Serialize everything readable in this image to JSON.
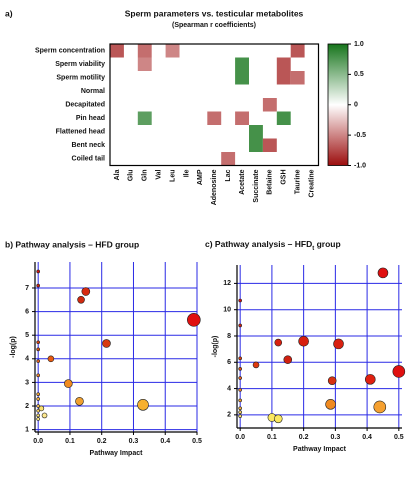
{
  "chart_data": [
    {
      "type": "heatmap",
      "panel": "a)",
      "title": "Sperm parameters vs. testicular metabolites",
      "subtitle": "(Spearman r coefficients)",
      "rows": [
        "Sperm concentration",
        "Sperm viability",
        "Sperm motility",
        "Normal",
        "Decapitated",
        "Pin head",
        "Flattened head",
        "Bent neck",
        "Coiled tail"
      ],
      "columns": [
        "Ala",
        "Glu",
        "Gln",
        "Val",
        "Leu",
        "Ile",
        "AMP",
        "Adenosine",
        "Lac",
        "Acetate",
        "Succinate",
        "Betaine",
        "GSH",
        "Taurine",
        "Creatine"
      ],
      "values": [
        [
          -0.7,
          null,
          -0.6,
          null,
          -0.5,
          null,
          null,
          null,
          null,
          null,
          null,
          null,
          null,
          -0.7,
          null
        ],
        [
          null,
          null,
          -0.5,
          null,
          null,
          null,
          null,
          null,
          null,
          0.8,
          null,
          null,
          -0.7,
          null,
          null
        ],
        [
          null,
          null,
          null,
          null,
          null,
          null,
          null,
          null,
          null,
          0.8,
          null,
          null,
          -0.7,
          -0.6,
          null
        ],
        [
          null,
          null,
          null,
          null,
          null,
          null,
          null,
          null,
          null,
          null,
          null,
          null,
          null,
          null,
          null
        ],
        [
          null,
          null,
          null,
          null,
          null,
          null,
          null,
          null,
          null,
          null,
          null,
          -0.6,
          null,
          null,
          null
        ],
        [
          null,
          null,
          0.7,
          null,
          null,
          null,
          null,
          -0.6,
          null,
          -0.6,
          null,
          null,
          0.8,
          null,
          null
        ],
        [
          null,
          null,
          null,
          null,
          null,
          null,
          null,
          null,
          null,
          null,
          0.8,
          null,
          null,
          null,
          null
        ],
        [
          null,
          null,
          null,
          null,
          null,
          null,
          null,
          null,
          null,
          null,
          0.8,
          -0.7,
          null,
          null,
          null
        ],
        [
          null,
          null,
          null,
          null,
          null,
          null,
          null,
          null,
          -0.6,
          null,
          null,
          null,
          null,
          null,
          null
        ]
      ],
      "clim": [
        -1,
        1
      ],
      "colors": [
        "#9c0d0d",
        "#ffffff",
        "#17751c"
      ],
      "cticks": [
        {
          "value": 1,
          "label": "1.0"
        },
        0.5,
        0,
        -0.5,
        {
          "value": -1,
          "label": "-1.0"
        }
      ]
    },
    {
      "type": "scatter",
      "title": "b) Pathway analysis – HFD group",
      "xlabel": "Pathway Impact",
      "ylabel": "-log(p)",
      "x": [
        0.49,
        0.15,
        0.135,
        0.215,
        0.04,
        0.095,
        0.13,
        0.33,
        0.0,
        0.0,
        0.0,
        0.0,
        0.0,
        0.0,
        0.0,
        0.0,
        0.0,
        0.0,
        0.0,
        0.0,
        0.01,
        0.02
      ],
      "y": [
        5.65,
        6.85,
        6.5,
        4.65,
        4.0,
        2.95,
        2.2,
        2.05,
        7.7,
        7.1,
        4.7,
        4.4,
        3.9,
        3.3,
        2.5,
        2.3,
        2.0,
        1.8,
        1.6,
        1.45,
        1.9,
        1.6
      ],
      "sizes": [
        6.5,
        4,
        3.5,
        4,
        3,
        4,
        4,
        5.5,
        1.5,
        1.5,
        1.5,
        1.5,
        1.5,
        1.5,
        1.5,
        1.5,
        1.5,
        1.5,
        1.5,
        1.5,
        2.5,
        2.5
      ],
      "colors": [
        "#e01010",
        "#d82a10",
        "#d02a10",
        "#d83a10",
        "#e85a10",
        "#f08a20",
        "#f0a030",
        "#f7b030",
        "#d81010",
        "#d82010",
        "#e04010",
        "#e05010",
        "#e86020",
        "#f08030",
        "#f3a030",
        "#f5b040",
        "#f7c050",
        "#f8d060",
        "#fbe070",
        "#fce880",
        "#fbe070",
        "#fde890"
      ],
      "xlim": [
        -0.01,
        0.5
      ],
      "ylim": [
        0.9,
        8.1
      ],
      "xticks": [
        {
          "value": 0,
          "label": "0.0"
        },
        0.1,
        0.2,
        0.3,
        0.4,
        0.5
      ],
      "yticks": [
        1,
        2,
        3,
        4,
        5,
        6,
        7
      ],
      "grid": true,
      "grid_color": "#2a2ae6"
    },
    {
      "type": "scatter",
      "title": "c) Pathway analysis – HFD",
      "title_sub": "t",
      "title_end": " group",
      "xlabel": "Pathway Impact",
      "ylabel": "-log(p)",
      "x": [
        0.45,
        0.5,
        0.41,
        0.31,
        0.29,
        0.2,
        0.15,
        0.12,
        0.05,
        0.285,
        0.44,
        0.1,
        0.12,
        0.0,
        0.0,
        0.0,
        0.0,
        0.0,
        0.0,
        0.0,
        0.0,
        0.0,
        0.0
      ],
      "y": [
        12.8,
        5.3,
        4.7,
        7.4,
        4.6,
        7.6,
        6.2,
        7.5,
        5.8,
        2.8,
        2.6,
        1.8,
        1.7,
        10.7,
        8.8,
        6.3,
        5.5,
        4.8,
        3.9,
        3.1,
        2.5,
        2.2,
        1.9
      ],
      "sizes": [
        5,
        6,
        5,
        5,
        4,
        5,
        4,
        3.5,
        3,
        5,
        6,
        4,
        4,
        1.5,
        1.5,
        1.5,
        1.5,
        1.5,
        1.5,
        1.5,
        1.5,
        1.5,
        1.5
      ],
      "colors": [
        "#e01010",
        "#e01010",
        "#e02010",
        "#d82010",
        "#d83010",
        "#d82010",
        "#d02010",
        "#d82010",
        "#e03a10",
        "#f08a20",
        "#f5a030",
        "#fbe860",
        "#fbe860",
        "#d81010",
        "#d82010",
        "#e04010",
        "#e05010",
        "#e86020",
        "#f08030",
        "#f3a030",
        "#f5b040",
        "#f8d060",
        "#fbe070"
      ],
      "xlim": [
        -0.01,
        0.51
      ],
      "ylim": [
        1.0,
        13.4
      ],
      "xticks": [
        {
          "value": 0,
          "label": "0.0"
        },
        0.1,
        0.2,
        0.3,
        0.4,
        0.5
      ],
      "yticks": [
        2,
        4,
        6,
        8,
        10,
        12
      ],
      "grid": true,
      "grid_color": "#2a2ae6"
    }
  ]
}
